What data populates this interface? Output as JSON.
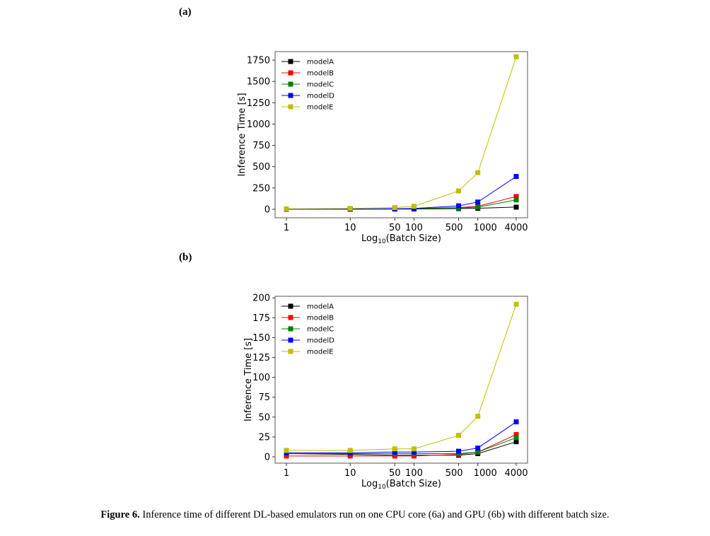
{
  "panels": [
    {
      "label": "(a)"
    },
    {
      "label": "(b)"
    }
  ],
  "caption": {
    "prefix": "Figure 6.",
    "text": " Inference time of different DL-based emulators run on one CPU core (6a) and GPU (6b) with different batch size."
  },
  "chart_data": [
    {
      "type": "line",
      "xscale": "log",
      "x": [
        1,
        10,
        50,
        100,
        500,
        1000,
        4000
      ],
      "xticks": [
        "1",
        "10",
        "50",
        "100",
        "500",
        "1000",
        "4000"
      ],
      "xlabel_prefix": "Log",
      "xlabel_sub": "10",
      "xlabel_suffix": "(Batch Size)",
      "ylabel": "Inference Time [s]",
      "ylim": [
        -100,
        1850
      ],
      "yticks": [
        0,
        250,
        500,
        750,
        1000,
        1250,
        1500,
        1750
      ],
      "legend": "top-left",
      "series": [
        {
          "name": "modelA",
          "color": "#000000",
          "values": [
            0.5,
            1,
            2,
            3,
            8,
            12,
            25
          ]
        },
        {
          "name": "modelB",
          "color": "#ff0000",
          "values": [
            1,
            2,
            5,
            8,
            20,
            35,
            150
          ]
        },
        {
          "name": "modelC",
          "color": "#008000",
          "values": [
            1,
            2,
            4,
            7,
            15,
            25,
            110
          ]
        },
        {
          "name": "modelD",
          "color": "#0000ff",
          "values": [
            1,
            3,
            7,
            10,
            40,
            85,
            385
          ]
        },
        {
          "name": "modelE",
          "color": "#bfbf00",
          "values": [
            5,
            10,
            20,
            35,
            215,
            430,
            1790
          ]
        }
      ]
    },
    {
      "type": "line",
      "xscale": "log",
      "x": [
        1,
        10,
        50,
        100,
        500,
        1000,
        4000
      ],
      "xticks": [
        "1",
        "10",
        "50",
        "100",
        "500",
        "1000",
        "4000"
      ],
      "xlabel_prefix": "Log",
      "xlabel_sub": "10",
      "xlabel_suffix": "(Batch Size)",
      "ylabel": "Inference Time [s]",
      "ylim": [
        -8,
        202
      ],
      "yticks": [
        0,
        25,
        50,
        75,
        100,
        125,
        150,
        175,
        200
      ],
      "legend": "top-left",
      "series": [
        {
          "name": "modelA",
          "color": "#000000",
          "values": [
            4,
            3,
            2,
            2,
            2,
            4,
            19
          ]
        },
        {
          "name": "modelB",
          "color": "#ff0000",
          "values": [
            1,
            1,
            1,
            1,
            3,
            6,
            28
          ]
        },
        {
          "name": "modelC",
          "color": "#008000",
          "values": [
            4,
            4,
            4,
            4,
            4,
            6,
            24
          ]
        },
        {
          "name": "modelD",
          "color": "#0000ff",
          "values": [
            5,
            5,
            6,
            6,
            7,
            11,
            44
          ]
        },
        {
          "name": "modelE",
          "color": "#bfbf00",
          "values": [
            8,
            8,
            10,
            10,
            27,
            51,
            192
          ]
        }
      ]
    }
  ]
}
